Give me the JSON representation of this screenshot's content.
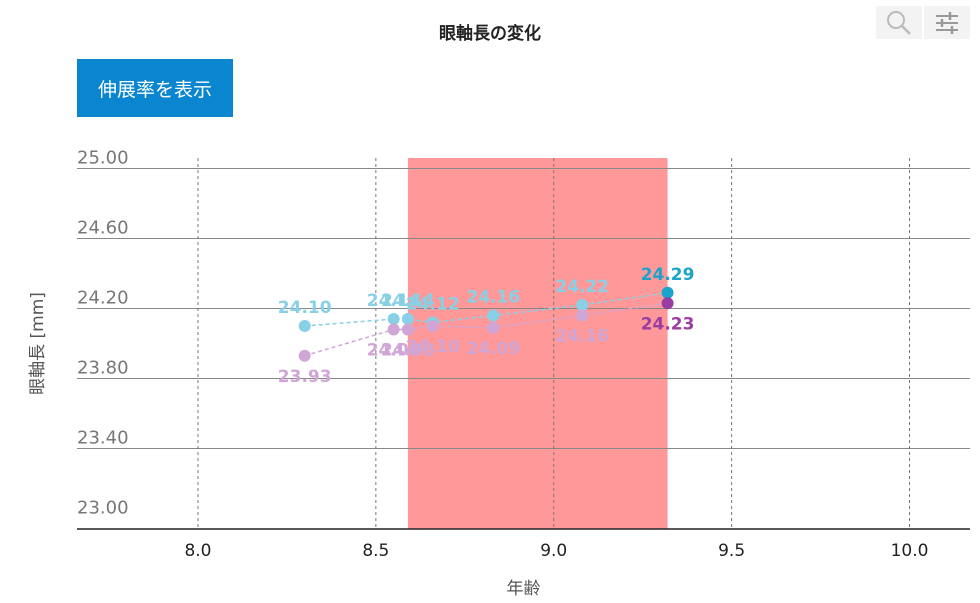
{
  "header": {
    "title": "眼軸長の変化",
    "toggle_label": "伸展率を表示",
    "zoom_icon": "magnifier-icon",
    "settings_icon": "sliders-icon"
  },
  "chart_data": {
    "type": "line",
    "title": "眼軸長の変化",
    "xlabel": "年齢",
    "ylabel": "眼軸長 [mm]",
    "xlim": [
      7.66,
      10.17
    ],
    "ylim": [
      22.94,
      25.06
    ],
    "xticks": [
      "8.0",
      "8.5",
      "9.0",
      "9.5",
      "10.0"
    ],
    "yticks": [
      "23.00",
      "23.40",
      "23.80",
      "24.20",
      "24.60",
      "25.00"
    ],
    "grid": true,
    "highlight_band": {
      "x_from": 8.59,
      "x_to": 9.32,
      "color": "#ff9999"
    },
    "series": [
      {
        "color": "#88d0e6",
        "highlight_color": "#1ba3cb",
        "x": [
          8.3,
          8.55,
          8.59,
          8.66,
          8.83,
          9.08,
          9.32
        ],
        "y": [
          24.1,
          24.14,
          24.14,
          24.12,
          24.16,
          24.22,
          24.29
        ],
        "labels": [
          "24.10",
          "24.14",
          "24.14",
          "24.12",
          "24.16",
          "24.22",
          "24.29"
        ]
      },
      {
        "color": "#cfa6d6",
        "highlight_color": "#9b3da2",
        "x": [
          8.3,
          8.55,
          8.59,
          8.66,
          8.83,
          9.08,
          9.32
        ],
        "y": [
          23.93,
          24.08,
          24.08,
          24.1,
          24.09,
          24.16,
          24.23
        ],
        "labels": [
          "23.93",
          "24.08",
          "24.08",
          "24.10",
          "24.09",
          "24.16",
          "24.23"
        ]
      }
    ]
  }
}
